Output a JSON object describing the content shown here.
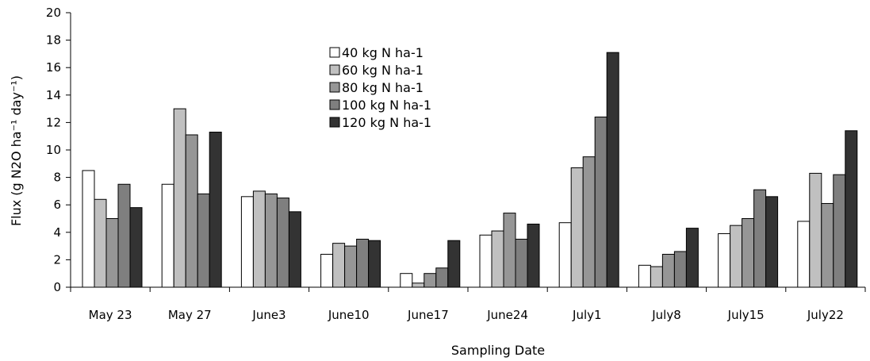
{
  "chart_data": {
    "type": "bar",
    "title": "",
    "xlabel": "Sampling Date",
    "ylabel": "Flux (g N2O ha⁻¹ day⁻¹)",
    "ylim": [
      0,
      20
    ],
    "yticks": [
      0,
      2,
      4,
      6,
      8,
      10,
      12,
      14,
      16,
      18,
      20
    ],
    "grid": false,
    "legend_position": "top-center",
    "categories": [
      "May 23",
      "May 27",
      "June3",
      "June10",
      "June17",
      "June24",
      "July1",
      "July8",
      "July15",
      "July22"
    ],
    "series": [
      {
        "name": "40 kg N ha-1",
        "color": "#ffffff",
        "values": [
          8.5,
          7.5,
          6.6,
          2.4,
          1.0,
          3.8,
          4.7,
          1.6,
          3.9,
          4.8
        ]
      },
      {
        "name": "60 kg N ha-1",
        "color": "#c0c0c0",
        "values": [
          6.4,
          13.0,
          7.0,
          3.2,
          0.3,
          4.1,
          8.7,
          1.5,
          4.5,
          8.3
        ]
      },
      {
        "name": "80 kg N ha-1",
        "color": "#969696",
        "values": [
          5.0,
          11.1,
          6.8,
          3.0,
          1.0,
          5.4,
          9.5,
          2.4,
          5.0,
          6.1
        ]
      },
      {
        "name": "100 kg N ha-1",
        "color": "#7f7f7f",
        "values": [
          7.5,
          6.8,
          6.5,
          3.5,
          1.4,
          3.5,
          12.4,
          2.6,
          7.1,
          8.2
        ]
      },
      {
        "name": "120 kg N ha-1",
        "color": "#333333",
        "values": [
          5.8,
          11.3,
          5.5,
          3.4,
          3.4,
          4.6,
          17.1,
          4.3,
          6.6,
          11.4
        ]
      }
    ]
  }
}
